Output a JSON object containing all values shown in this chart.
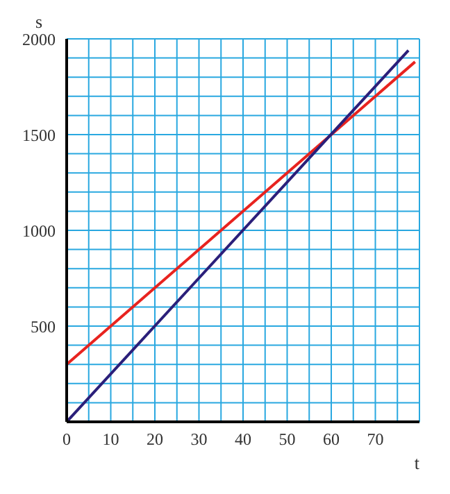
{
  "chart_data": {
    "type": "line",
    "xlabel": "t",
    "ylabel": "s",
    "xlim": [
      0,
      80
    ],
    "ylim": [
      0,
      2000
    ],
    "xticks": [
      0,
      {
        "value": 5,
        "label": null
      },
      10,
      {
        "value": 15,
        "label": null
      },
      20,
      {
        "value": 25,
        "label": null
      },
      30,
      {
        "value": 35,
        "label": null
      },
      40,
      {
        "value": 45,
        "label": null
      },
      50,
      {
        "value": 55,
        "label": null
      },
      60,
      {
        "value": 65,
        "label": null
      },
      70,
      {
        "value": 75,
        "label": null
      },
      {
        "value": 80,
        "label": null
      }
    ],
    "yticks": [
      {
        "value": 0,
        "label": null
      },
      {
        "value": 100,
        "label": null
      },
      {
        "value": 200,
        "label": null
      },
      {
        "value": 300,
        "label": null
      },
      {
        "value": 400,
        "label": null
      },
      500,
      {
        "value": 600,
        "label": null
      },
      {
        "value": 700,
        "label": null
      },
      {
        "value": 800,
        "label": null
      },
      {
        "value": 900,
        "label": null
      },
      1000,
      {
        "value": 1100,
        "label": null
      },
      {
        "value": 1200,
        "label": null
      },
      {
        "value": 1300,
        "label": null
      },
      {
        "value": 1400,
        "label": null
      },
      1500,
      {
        "value": 1600,
        "label": null
      },
      {
        "value": 1700,
        "label": null
      },
      {
        "value": 1800,
        "label": null
      },
      {
        "value": 1900,
        "label": null
      },
      2000
    ],
    "grid": true,
    "marker": "none",
    "line_style": "solid",
    "series": [
      {
        "color": "#e8231f",
        "x": [
          0,
          79
        ],
        "values": [
          300,
          1880
        ]
      },
      {
        "color": "#2b1f7a",
        "x": [
          0,
          77.5
        ],
        "values": [
          0,
          1940
        ]
      }
    ]
  }
}
